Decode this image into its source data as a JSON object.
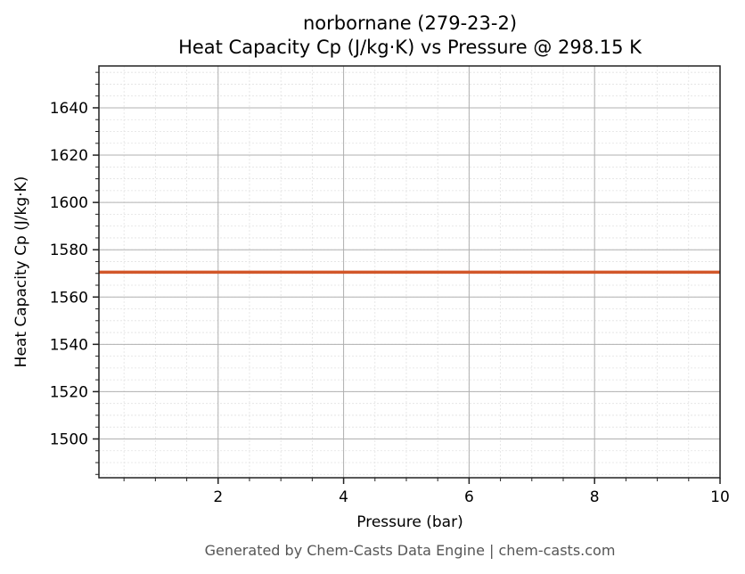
{
  "chart_data": {
    "type": "line",
    "title": "norbornane (279-23-2)",
    "subtitle": "Heat Capacity Cp (J/kg·K) vs Pressure @ 298.15 K",
    "xlabel": "Pressure (bar)",
    "ylabel": "Heat Capacity Cp (J/kg·K)",
    "xlim": [
      0.1,
      10
    ],
    "ylim": [
      1483.6,
      1657.7
    ],
    "x_ticks": [
      2,
      4,
      6,
      8,
      10
    ],
    "y_ticks": [
      1500,
      1520,
      1540,
      1560,
      1580,
      1600,
      1620,
      1640
    ],
    "grid": true,
    "minor_grid": true,
    "series": [
      {
        "name": "Cp",
        "color": "#d2572a",
        "x": [
          0.1,
          10
        ],
        "y": [
          1570.5,
          1570.5
        ]
      }
    ]
  },
  "footer": "Generated by Chem-Casts Data Engine | chem-casts.com"
}
